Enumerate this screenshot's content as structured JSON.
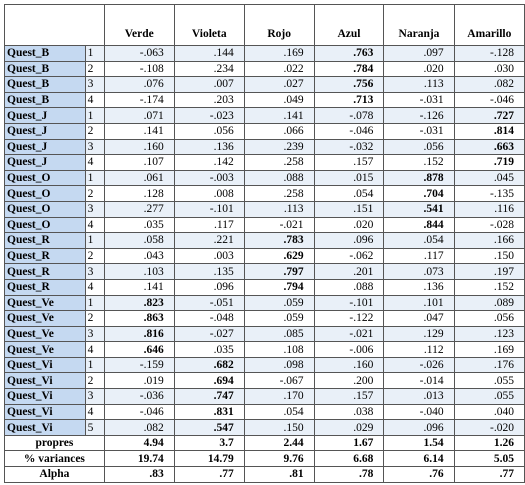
{
  "table": {
    "columns": [
      "Verde",
      "Violeta",
      "Rojo",
      "Azul",
      "Naranja",
      "Amarillo"
    ],
    "rows": [
      {
        "label": "Quest_B",
        "item": "1",
        "values": [
          "-.063",
          ".144",
          ".169",
          ".763",
          ".097",
          "-.128"
        ],
        "bold": 3
      },
      {
        "label": "Quest_B",
        "item": "2",
        "values": [
          "-.108",
          ".234",
          ".022",
          ".784",
          ".020",
          ".030"
        ],
        "bold": 3
      },
      {
        "label": "Quest_B",
        "item": "3",
        "values": [
          ".076",
          ".007",
          ".027",
          ".756",
          ".113",
          ".082"
        ],
        "bold": 3
      },
      {
        "label": "Quest_B",
        "item": "4",
        "values": [
          "-.174",
          ".203",
          ".049",
          ".713",
          "-.031",
          "-.046"
        ],
        "bold": 3
      },
      {
        "label": "Quest_J",
        "item": "1",
        "values": [
          ".071",
          "-.023",
          ".141",
          "-.078",
          "-.126",
          ".727"
        ],
        "bold": 5
      },
      {
        "label": "Quest_J",
        "item": "2",
        "values": [
          ".141",
          ".056",
          ".066",
          "-.046",
          "-.031",
          ".814"
        ],
        "bold": 5
      },
      {
        "label": "Quest_J",
        "item": "3",
        "values": [
          ".160",
          ".136",
          ".239",
          "-.032",
          ".056",
          ".663"
        ],
        "bold": 5
      },
      {
        "label": "Quest_J",
        "item": "4",
        "values": [
          ".107",
          ".142",
          ".258",
          ".157",
          ".152",
          ".719"
        ],
        "bold": 5
      },
      {
        "label": "Quest_O",
        "item": "1",
        "values": [
          ".061",
          "-.003",
          ".088",
          ".015",
          ".878",
          ".045"
        ],
        "bold": 4
      },
      {
        "label": "Quest_O",
        "item": "2",
        "values": [
          ".128",
          ".008",
          ".258",
          ".054",
          ".704",
          "-.135"
        ],
        "bold": 4
      },
      {
        "label": "Quest_O",
        "item": "3",
        "values": [
          ".277",
          "-.101",
          ".113",
          ".151",
          ".541",
          ".116"
        ],
        "bold": 4
      },
      {
        "label": "Quest_O",
        "item": "4",
        "values": [
          ".035",
          ".117",
          "-.021",
          ".020",
          ".844",
          "-.028"
        ],
        "bold": 4
      },
      {
        "label": "Quest_R",
        "item": "1",
        "values": [
          ".058",
          ".221",
          ".783",
          ".096",
          ".054",
          ".166"
        ],
        "bold": 2
      },
      {
        "label": "Quest_R",
        "item": "2",
        "values": [
          ".043",
          ".003",
          ".629",
          "-.062",
          ".117",
          ".150"
        ],
        "bold": 2
      },
      {
        "label": "Quest_R",
        "item": "3",
        "values": [
          ".103",
          ".135",
          ".797",
          ".201",
          ".073",
          ".197"
        ],
        "bold": 2
      },
      {
        "label": "Quest_R",
        "item": "4",
        "values": [
          ".141",
          ".096",
          ".794",
          ".088",
          ".136",
          ".152"
        ],
        "bold": 2
      },
      {
        "label": "Quest_Ve",
        "item": "1",
        "values": [
          ".823",
          "-.051",
          ".059",
          "-.101",
          ".101",
          ".089"
        ],
        "bold": 0
      },
      {
        "label": "Quest_Ve",
        "item": "2",
        "values": [
          ".863",
          "-.048",
          ".059",
          "-.122",
          ".047",
          ".056"
        ],
        "bold": 0
      },
      {
        "label": "Quest_Ve",
        "item": "3",
        "values": [
          ".816",
          "-.027",
          ".085",
          "-.021",
          ".129",
          ".123"
        ],
        "bold": 0
      },
      {
        "label": "Quest_Ve",
        "item": "4",
        "values": [
          ".646",
          ".035",
          ".108",
          "-.006",
          ".112",
          ".169"
        ],
        "bold": 0
      },
      {
        "label": "Quest_Vi",
        "item": "1",
        "values": [
          "-.159",
          ".682",
          ".098",
          ".160",
          "-.026",
          ".176"
        ],
        "bold": 1
      },
      {
        "label": "Quest_Vi",
        "item": "2",
        "values": [
          ".019",
          ".694",
          "-.067",
          ".200",
          "-.014",
          ".055"
        ],
        "bold": 1
      },
      {
        "label": "Quest_Vi",
        "item": "3",
        "values": [
          "-.036",
          ".747",
          ".170",
          ".157",
          ".013",
          ".055"
        ],
        "bold": 1
      },
      {
        "label": "Quest_Vi",
        "item": "4",
        "values": [
          "-.046",
          ".831",
          ".054",
          ".038",
          "-.040",
          ".040"
        ],
        "bold": 1
      },
      {
        "label": "Quest_Vi",
        "item": "5",
        "values": [
          ".082",
          ".547",
          ".150",
          ".029",
          ".096",
          "-.020"
        ],
        "bold": 1
      }
    ],
    "footer": [
      {
        "label": "propres",
        "values": [
          "4.94",
          "3.7",
          "2.44",
          "1.67",
          "1.54",
          "1.26"
        ]
      },
      {
        "label": "% variances",
        "values": [
          "19.74",
          "14.79",
          "9.76",
          "6.68",
          "6.14",
          "5.05"
        ]
      },
      {
        "label": "Alpha",
        "values": [
          ".83",
          ".77",
          ".81",
          ".78",
          ".76",
          ".77"
        ]
      }
    ]
  }
}
